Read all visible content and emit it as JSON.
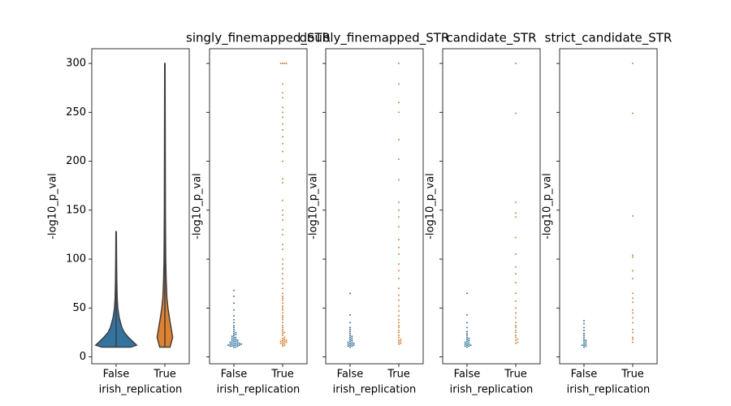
{
  "chart_data": [
    {
      "type": "violin",
      "xlabel": "irish_replication",
      "ylabel": "-log10_p_val",
      "categories": [
        "False",
        "True"
      ],
      "colors": [
        "#3274a1",
        "#e1812c"
      ],
      "ylim": [
        -7,
        315
      ],
      "yticks": [
        0,
        50,
        100,
        150,
        200,
        250,
        300
      ],
      "show_ytick_labels": true,
      "density_y": [
        [
          10,
          12,
          15,
          20,
          25,
          30,
          40,
          50,
          60,
          80,
          100,
          128
        ],
        [
          10,
          20,
          30,
          40,
          50,
          60,
          80,
          100,
          150,
          200,
          250,
          300
        ]
      ],
      "density": [
        [
          0.7,
          1,
          0.85,
          0.6,
          0.4,
          0.28,
          0.15,
          0.08,
          0.05,
          0.03,
          0.02,
          0.01
        ],
        [
          0.25,
          0.38,
          0.3,
          0.22,
          0.15,
          0.1,
          0.06,
          0.04,
          0.025,
          0.02,
          0.015,
          0.01
        ]
      ]
    },
    {
      "type": "swarm",
      "title": "singly_finemapped_STR",
      "xlabel": "irish_replication",
      "ylabel": "-log10_p_val",
      "categories": [
        "False",
        "True"
      ],
      "colors": [
        "#3274a1",
        "#e1812c"
      ],
      "ylim": [
        -7,
        315
      ],
      "yticks": [
        0,
        50,
        100,
        150,
        200,
        250,
        300
      ],
      "show_ytick_labels": false,
      "values": [
        [
          10,
          10,
          11,
          11,
          11,
          12,
          12,
          12,
          12,
          13,
          13,
          13,
          13,
          14,
          14,
          14,
          15,
          15,
          15,
          16,
          16,
          17,
          17,
          18,
          18,
          19,
          20,
          20,
          21,
          22,
          23,
          24,
          25,
          26,
          28,
          30,
          32,
          35,
          38,
          42,
          48,
          55,
          62,
          68
        ],
        [
          300,
          300,
          300,
          300,
          279,
          270,
          265,
          255,
          250,
          245,
          238,
          232,
          225,
          218,
          210,
          200,
          182,
          178,
          160,
          150,
          145,
          140,
          130,
          125,
          115,
          110,
          100,
          95,
          90,
          85,
          80,
          75,
          70,
          65,
          62,
          60,
          58,
          55,
          52,
          50,
          48,
          45,
          42,
          40,
          38,
          35,
          32,
          30,
          28,
          26,
          25,
          24,
          22,
          20,
          19,
          18,
          17,
          17,
          16,
          16,
          15,
          15,
          14,
          14,
          13,
          12,
          11
        ]
      ]
    },
    {
      "type": "swarm",
      "title": "doubly_finemapped_STR",
      "xlabel": "irish_replication",
      "ylabel": "-log10_p_val",
      "categories": [
        "False",
        "True"
      ],
      "colors": [
        "#3274a1",
        "#e1812c"
      ],
      "ylim": [
        -7,
        315
      ],
      "yticks": [
        0,
        50,
        100,
        150,
        200,
        250,
        300
      ],
      "show_ytick_labels": false,
      "values": [
        [
          10,
          11,
          11,
          12,
          12,
          13,
          13,
          14,
          14,
          15,
          15,
          16,
          17,
          18,
          19,
          20,
          21,
          22,
          24,
          26,
          28,
          30,
          35,
          43,
          65
        ],
        [
          300,
          279,
          260,
          250,
          222,
          202,
          181,
          158,
          150,
          143,
          133,
          120,
          112,
          105,
          95,
          88,
          80,
          70,
          63,
          58,
          52,
          47,
          42,
          38,
          35,
          32,
          30,
          27,
          25,
          22,
          20,
          18,
          17,
          16,
          15,
          14,
          13
        ]
      ]
    },
    {
      "type": "swarm",
      "title": "candidate_STR",
      "xlabel": "irish_replication",
      "ylabel": "-log10_p_val",
      "categories": [
        "False",
        "True"
      ],
      "colors": [
        "#3274a1",
        "#e1812c"
      ],
      "ylim": [
        -7,
        315
      ],
      "yticks": [
        0,
        50,
        100,
        150,
        200,
        250,
        300
      ],
      "show_ytick_labels": false,
      "values": [
        [
          10,
          11,
          11,
          12,
          12,
          13,
          13,
          14,
          15,
          15,
          16,
          17,
          18,
          19,
          20,
          22,
          24,
          26,
          30,
          35,
          43,
          65
        ],
        [
          300,
          249,
          158,
          147,
          143,
          122,
          105,
          92,
          85,
          76,
          65,
          57,
          50,
          45,
          40,
          35,
          32,
          30,
          27,
          25,
          22,
          20,
          18,
          17,
          15,
          14
        ]
      ]
    },
    {
      "type": "swarm",
      "title": "strict_candidate_STR",
      "xlabel": "irish_replication",
      "ylabel": "-log10_p_val",
      "categories": [
        "False",
        "True"
      ],
      "colors": [
        "#3274a1",
        "#e1812c"
      ],
      "ylim": [
        -7,
        315
      ],
      "yticks": [
        0,
        50,
        100,
        150,
        200,
        250,
        300
      ],
      "show_ytick_labels": false,
      "values": [
        [
          10,
          11,
          12,
          12,
          13,
          14,
          15,
          16,
          17,
          18,
          20,
          22,
          24,
          27,
          30,
          34,
          37
        ],
        [
          300,
          249,
          144,
          104,
          102,
          88,
          80,
          65,
          60,
          56,
          48,
          45,
          40,
          35,
          28,
          25,
          20,
          18,
          15
        ]
      ]
    }
  ]
}
